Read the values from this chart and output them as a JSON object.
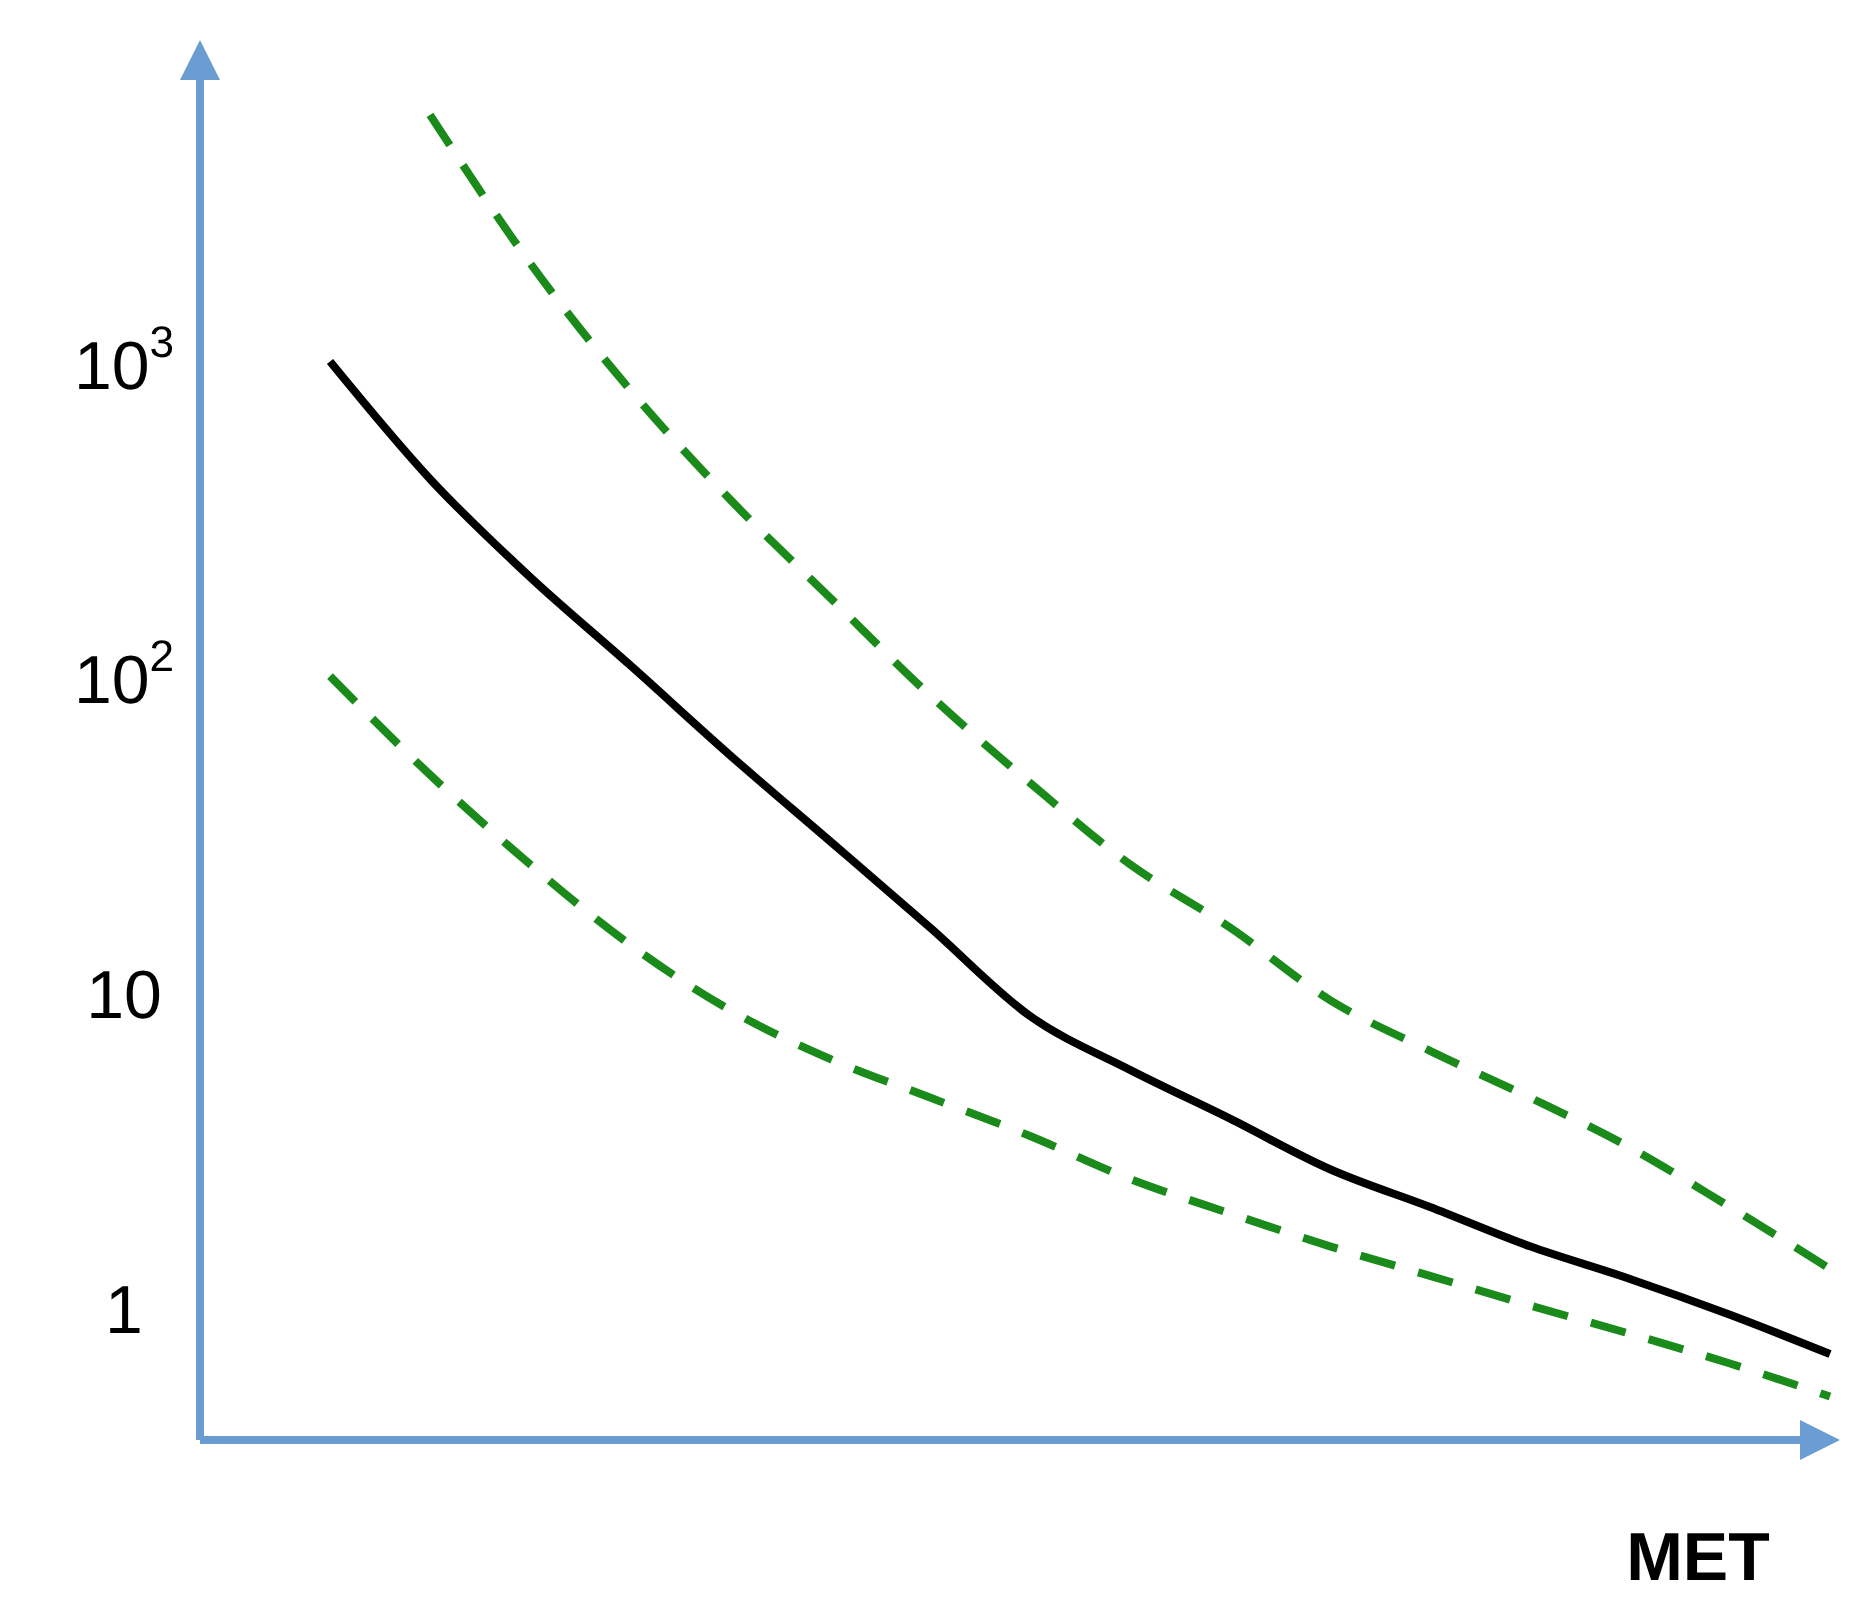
{
  "chart_data": {
    "type": "line",
    "xlabel": "MET",
    "log": "y",
    "grid": false,
    "tick_labels": "y",
    "categories": [
      null,
      null,
      null,
      null,
      null,
      null,
      null,
      null,
      null,
      null,
      null,
      null,
      null,
      null,
      null,
      null
    ],
    "ylim": [
      0.4,
      10000
    ],
    "yticks": [
      1,
      10,
      {
        "value": 100,
        "label": "10$^{2}$"
      },
      {
        "value": 1000,
        "label": "10$^{3}$"
      }
    ],
    "series": [
      {
        "color": "#000000",
        "line_style": "solid",
        "values": [
          1070,
          453,
          221,
          116,
          60,
          32,
          17,
          8.9,
          6.0,
          4.2,
          2.9,
          2.2,
          1.65,
          1.3,
          1.0,
          0.75
        ]
      },
      {
        "color": "#1a8a1a",
        "line_style": "dashed",
        "values": [
          null,
          6500,
          2200,
          870,
          390,
          190,
          93,
          49,
          27,
          17,
          10,
          6.9,
          4.9,
          3.4,
          2.2,
          1.4
        ]
      },
      {
        "color": "#1a8a1a",
        "line_style": "dashed",
        "values": [
          107,
          52,
          27,
          15,
          9.3,
          6.5,
          4.9,
          3.7,
          2.7,
          2.1,
          1.65,
          1.33,
          1.07,
          0.87,
          0.7,
          0.55
        ]
      }
    ]
  }
}
